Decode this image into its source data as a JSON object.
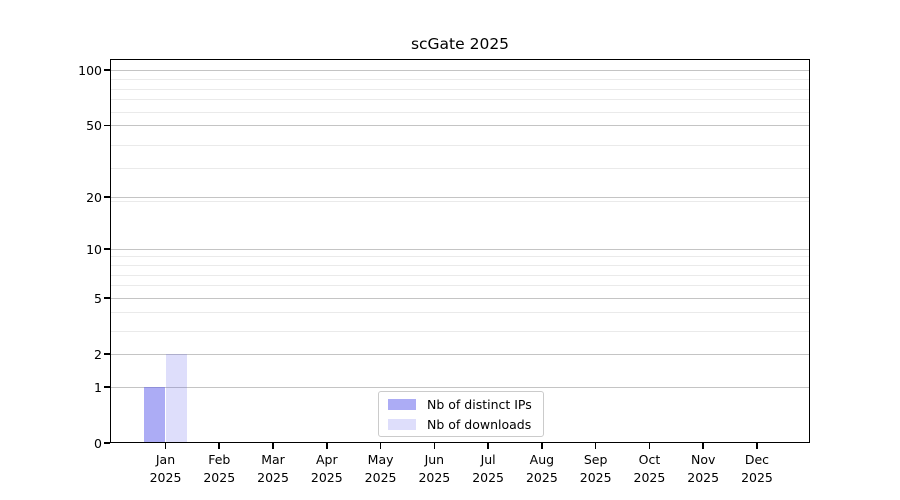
{
  "title": "scGate 2025",
  "chart_data": {
    "type": "bar",
    "title": "scGate 2025",
    "categories": [
      "Jan",
      "Feb",
      "Mar",
      "Apr",
      "May",
      "Jun",
      "Jul",
      "Aug",
      "Sep",
      "Oct",
      "Nov",
      "Dec"
    ],
    "category_sublabel": "2025",
    "series": [
      {
        "name": "Nb of distinct IPs",
        "color": "#5a5aeb",
        "alpha": 0.5,
        "values": [
          1,
          0,
          0,
          0,
          0,
          0,
          0,
          0,
          0,
          0,
          0,
          0
        ]
      },
      {
        "name": "Nb of downloads",
        "color": "#5a5aeb",
        "alpha": 0.2,
        "values": [
          2,
          0,
          0,
          0,
          0,
          0,
          0,
          0,
          0,
          0,
          0,
          0
        ]
      }
    ],
    "yscale": "log10(1+y)",
    "y_ticks": [
      0,
      1,
      2,
      5,
      10,
      20,
      50,
      100
    ],
    "y_tick_labels": [
      "0",
      "1",
      "2",
      "5",
      "10",
      "20",
      "50",
      "100"
    ],
    "y_minor_gridlines": [
      3,
      4,
      6,
      7,
      8,
      9,
      19,
      29,
      39,
      59,
      69,
      79,
      89
    ],
    "ylim": [
      0,
      115
    ],
    "grid": "both",
    "legend_position": "lower center",
    "colors": {
      "grid_major": "#c4c4c4",
      "grid_minor": "#eaeaea",
      "axis": "#000000",
      "background": "#ffffff"
    }
  }
}
